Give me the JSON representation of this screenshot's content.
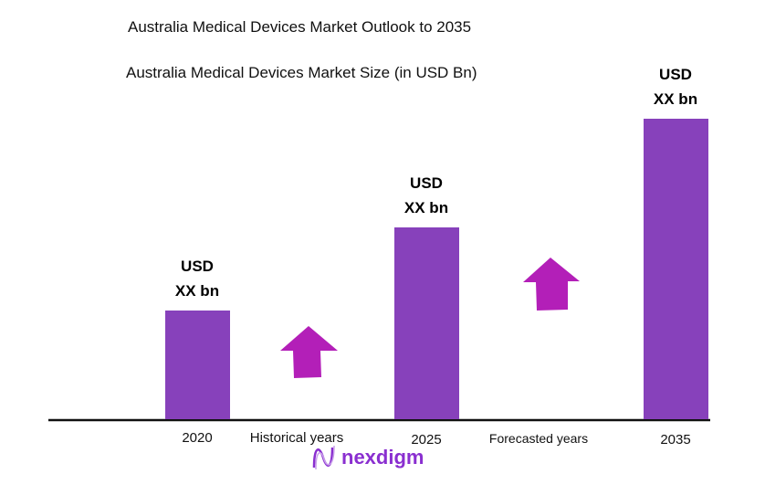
{
  "chart_data": {
    "type": "bar",
    "title": "Australia Medical Devices Market Outlook to 2035",
    "subtitle": "Australia Medical Devices Market Size (in USD Bn)",
    "categories": [
      "2020",
      "2025",
      "2035"
    ],
    "values": [
      119,
      210,
      329
    ],
    "value_note": "relative index; actual values masked",
    "data_labels": [
      "USD XX bn",
      "USD XX bn",
      "USD XX bn"
    ],
    "data_label_lines": [
      [
        "USD",
        "XX bn"
      ],
      [
        "USD",
        "XX bn"
      ],
      [
        "USD",
        "XX bn"
      ]
    ],
    "annotations": [
      "Historical years",
      "Forecasted years"
    ],
    "ylim": [
      0,
      340
    ],
    "bar_color": "#8741bb",
    "arrow_color": "#b31fb8"
  },
  "logo": {
    "text": "nexdigm"
  }
}
